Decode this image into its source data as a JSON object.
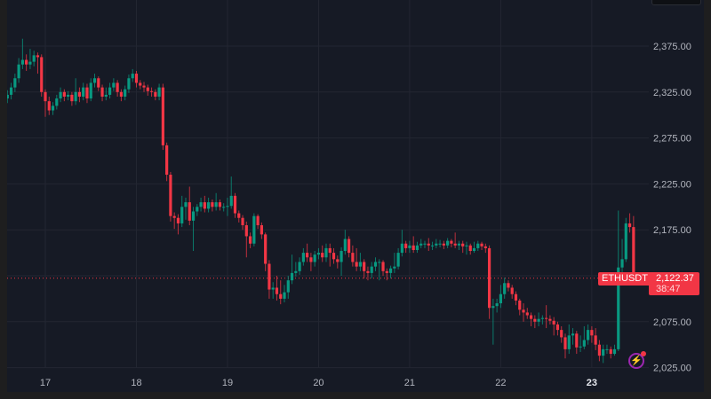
{
  "chart_data": {
    "type": "candlestick",
    "symbol": "ETHUSDT",
    "last_price": "2,122.37",
    "countdown": "38:47",
    "colors": {
      "up": "#089981",
      "down": "#f23645",
      "background": "#161a25",
      "grid": "#232632"
    },
    "ylim": [
      2025,
      2375
    ],
    "y_ticks": [
      "2,375.00",
      "2,325.00",
      "2,275.00",
      "2,225.00",
      "2,175.00",
      "2,075.00",
      "2,025.00"
    ],
    "y_tick_values": [
      2375,
      2325,
      2275,
      2225,
      2175,
      2075,
      2025
    ],
    "x_ticks": [
      "17",
      "18",
      "19",
      "20",
      "21",
      "22",
      "23"
    ],
    "x_tick_candle_index": [
      10,
      34,
      58,
      82,
      106,
      130,
      154
    ],
    "grid": true,
    "candle_interval": "1h",
    "close": [
      2322,
      2330,
      2340,
      2355,
      2360,
      2355,
      2358,
      2365,
      2363,
      2325,
      2315,
      2305,
      2310,
      2318,
      2325,
      2320,
      2322,
      2315,
      2325,
      2320,
      2330,
      2318,
      2335,
      2340,
      2330,
      2320,
      2322,
      2330,
      2335,
      2325,
      2320,
      2328,
      2340,
      2345,
      2335,
      2332,
      2330,
      2326,
      2325,
      2320,
      2330,
      2267,
      2235,
      2190,
      2188,
      2182,
      2200,
      2205,
      2185,
      2195,
      2200,
      2205,
      2198,
      2205,
      2200,
      2205,
      2200,
      2200,
      2201,
      2212,
      2193,
      2188,
      2180,
      2168,
      2160,
      2190,
      2180,
      2170,
      2138,
      2110,
      2112,
      2105,
      2100,
      2107,
      2120,
      2128,
      2130,
      2140,
      2150,
      2145,
      2140,
      2148,
      2150,
      2145,
      2155,
      2150,
      2143,
      2140,
      2152,
      2165,
      2150,
      2140,
      2135,
      2140,
      2130,
      2128,
      2135,
      2140,
      2140,
      2130,
      2128,
      2133,
      2135,
      2150,
      2160,
      2155,
      2158,
      2153,
      2158,
      2160,
      2160,
      2158,
      2158,
      2160,
      2160,
      2158,
      2163,
      2160,
      2158,
      2160,
      2157,
      2158,
      2152,
      2155,
      2160,
      2157,
      2155,
      2090,
      2092,
      2095,
      2105,
      2117,
      2112,
      2105,
      2098,
      2088,
      2085,
      2082,
      2078,
      2075,
      2078,
      2079,
      2078,
      2076,
      2072,
      2066,
      2058,
      2045,
      2060,
      2062,
      2047,
      2048,
      2055,
      2066,
      2060,
      2050,
      2038,
      2045,
      2045,
      2040,
      2045,
      2134,
      2143,
      2182,
      2178,
      2122.37
    ],
    "open": [
      2318,
      2322,
      2330,
      2340,
      2355,
      2360,
      2355,
      2358,
      2365,
      2363,
      2325,
      2315,
      2305,
      2310,
      2318,
      2325,
      2320,
      2322,
      2315,
      2325,
      2320,
      2330,
      2318,
      2335,
      2340,
      2330,
      2320,
      2322,
      2330,
      2335,
      2325,
      2320,
      2328,
      2340,
      2345,
      2335,
      2332,
      2330,
      2326,
      2325,
      2320,
      2330,
      2267,
      2235,
      2190,
      2188,
      2182,
      2200,
      2205,
      2185,
      2195,
      2200,
      2205,
      2198,
      2205,
      2200,
      2205,
      2200,
      2200,
      2201,
      2212,
      2193,
      2188,
      2180,
      2168,
      2160,
      2190,
      2180,
      2170,
      2138,
      2110,
      2112,
      2105,
      2100,
      2107,
      2120,
      2128,
      2130,
      2140,
      2150,
      2145,
      2140,
      2148,
      2150,
      2145,
      2155,
      2150,
      2143,
      2140,
      2152,
      2165,
      2150,
      2140,
      2135,
      2140,
      2130,
      2128,
      2135,
      2140,
      2140,
      2130,
      2128,
      2133,
      2135,
      2150,
      2160,
      2155,
      2158,
      2153,
      2158,
      2160,
      2160,
      2158,
      2158,
      2160,
      2160,
      2158,
      2163,
      2160,
      2158,
      2160,
      2157,
      2158,
      2152,
      2155,
      2160,
      2157,
      2155,
      2090,
      2092,
      2095,
      2105,
      2117,
      2112,
      2105,
      2098,
      2088,
      2085,
      2082,
      2078,
      2075,
      2078,
      2079,
      2078,
      2076,
      2072,
      2066,
      2058,
      2045,
      2060,
      2062,
      2047,
      2048,
      2055,
      2066,
      2060,
      2050,
      2038,
      2045,
      2045,
      2040,
      2045,
      2134,
      2143,
      2182,
      2178
    ],
    "high": [
      2327,
      2335,
      2345,
      2362,
      2383,
      2366,
      2372,
      2370,
      2368,
      2366,
      2328,
      2320,
      2314,
      2322,
      2330,
      2328,
      2326,
      2325,
      2340,
      2330,
      2335,
      2334,
      2340,
      2345,
      2342,
      2333,
      2330,
      2335,
      2340,
      2338,
      2328,
      2332,
      2344,
      2350,
      2348,
      2338,
      2336,
      2333,
      2330,
      2328,
      2334,
      2334,
      2270,
      2238,
      2194,
      2192,
      2212,
      2210,
      2222,
      2200,
      2203,
      2210,
      2212,
      2210,
      2208,
      2215,
      2208,
      2204,
      2210,
      2233,
      2215,
      2196,
      2191,
      2184,
      2172,
      2193,
      2192,
      2183,
      2172,
      2142,
      2118,
      2125,
      2120,
      2115,
      2125,
      2148,
      2140,
      2145,
      2155,
      2160,
      2150,
      2152,
      2155,
      2158,
      2160,
      2160,
      2155,
      2147,
      2156,
      2175,
      2168,
      2158,
      2155,
      2150,
      2143,
      2135,
      2140,
      2145,
      2143,
      2142,
      2133,
      2136,
      2150,
      2155,
      2175,
      2163,
      2163,
      2168,
      2162,
      2165,
      2163,
      2166,
      2162,
      2165,
      2164,
      2163,
      2166,
      2165,
      2172,
      2163,
      2163,
      2162,
      2160,
      2162,
      2163,
      2162,
      2160,
      2158,
      2100,
      2100,
      2115,
      2123,
      2120,
      2115,
      2108,
      2100,
      2095,
      2090,
      2085,
      2082,
      2085,
      2082,
      2093,
      2082,
      2080,
      2075,
      2070,
      2062,
      2072,
      2068,
      2065,
      2060,
      2070,
      2072,
      2070,
      2068,
      2055,
      2050,
      2050,
      2048,
      2050,
      2196,
      2165,
      2188,
      2193,
      2190
    ],
    "low": [
      2313,
      2317,
      2325,
      2335,
      2350,
      2348,
      2350,
      2353,
      2345,
      2320,
      2298,
      2300,
      2300,
      2306,
      2314,
      2315,
      2316,
      2310,
      2311,
      2314,
      2316,
      2313,
      2315,
      2330,
      2326,
      2315,
      2316,
      2318,
      2326,
      2320,
      2315,
      2316,
      2324,
      2336,
      2330,
      2328,
      2325,
      2321,
      2320,
      2316,
      2316,
      2262,
      2228,
      2184,
      2176,
      2170,
      2178,
      2186,
      2180,
      2152,
      2190,
      2195,
      2194,
      2194,
      2195,
      2196,
      2196,
      2195,
      2190,
      2198,
      2188,
      2183,
      2175,
      2145,
      2155,
      2157,
      2176,
      2165,
      2130,
      2100,
      2100,
      2098,
      2094,
      2096,
      2100,
      2116,
      2124,
      2126,
      2136,
      2140,
      2130,
      2135,
      2143,
      2140,
      2140,
      2135,
      2138,
      2133,
      2125,
      2148,
      2145,
      2135,
      2130,
      2130,
      2122,
      2120,
      2122,
      2130,
      2120,
      2125,
      2120,
      2122,
      2128,
      2132,
      2146,
      2150,
      2150,
      2150,
      2150,
      2155,
      2155,
      2152,
      2153,
      2155,
      2156,
      2154,
      2155,
      2156,
      2155,
      2153,
      2150,
      2148,
      2148,
      2150,
      2152,
      2153,
      2150,
      2078,
      2050,
      2085,
      2090,
      2100,
      2108,
      2100,
      2093,
      2082,
      2075,
      2078,
      2070,
      2068,
      2070,
      2072,
      2068,
      2072,
      2060,
      2060,
      2052,
      2035,
      2040,
      2050,
      2040,
      2042,
      2045,
      2050,
      2052,
      2044,
      2032,
      2030,
      2040,
      2035,
      2038,
      2043,
      2115,
      2140,
      2172,
      2115
    ]
  },
  "ui": {
    "top_button": ""
  }
}
